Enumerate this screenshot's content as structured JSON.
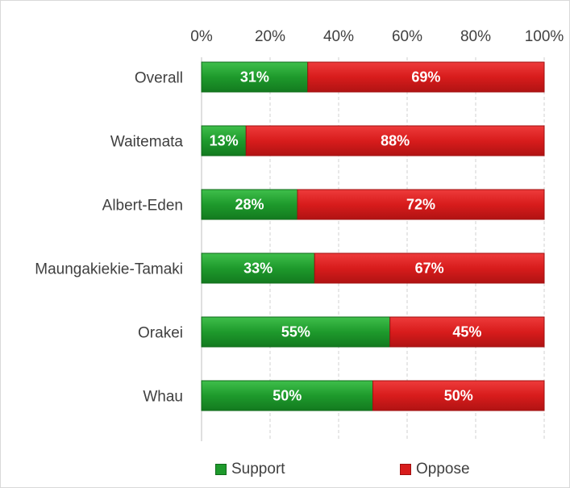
{
  "chart_data": {
    "type": "bar",
    "orientation": "horizontal",
    "stacked": true,
    "categories": [
      "Overall",
      "Waitemata",
      "Albert-Eden",
      "Maungakiekie-Tamaki",
      "Orakei",
      "Whau"
    ],
    "series": [
      {
        "name": "Support",
        "values": [
          31,
          13,
          28,
          33,
          55,
          50
        ],
        "labels": [
          "31%",
          "13%",
          "28%",
          "33%",
          "55%",
          "50%"
        ],
        "color": "#1e9a2c"
      },
      {
        "name": "Oppose",
        "values": [
          69,
          88,
          72,
          67,
          45,
          50
        ],
        "labels": [
          "69%",
          "88%",
          "72%",
          "67%",
          "45%",
          "50%"
        ],
        "color": "#d81c1c"
      }
    ],
    "x_ticks": [
      "0%",
      "20%",
      "40%",
      "60%",
      "80%",
      "100%"
    ],
    "xlim": [
      0,
      100
    ],
    "x_axis_position": "top",
    "grid": "vertical dashed",
    "legend_position": "bottom"
  }
}
